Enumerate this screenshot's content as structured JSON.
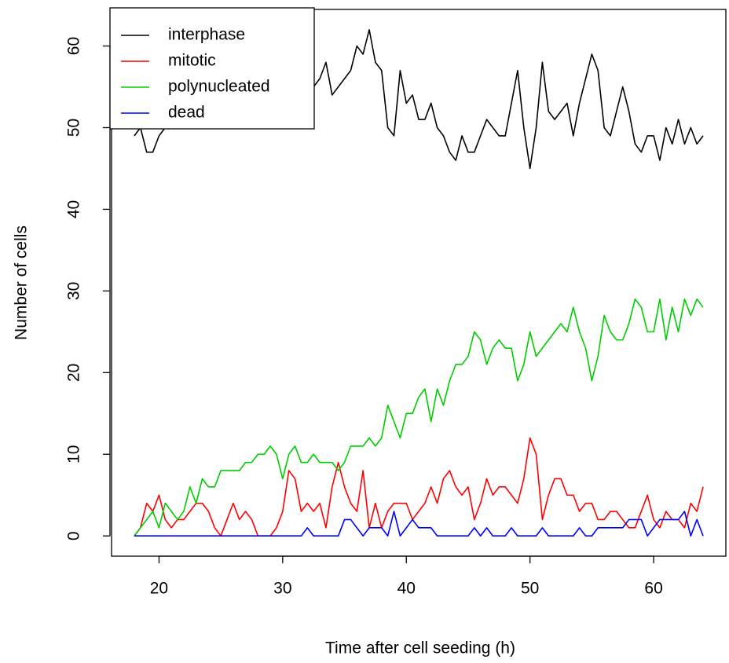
{
  "chart_data": {
    "type": "line",
    "xlabel": "Time after cell seeding (h)",
    "ylabel": "Number of cells",
    "x": [
      18,
      18.5,
      19,
      19.5,
      20,
      20.5,
      21,
      21.5,
      22,
      22.5,
      23,
      23.5,
      24,
      24.5,
      25,
      25.5,
      26,
      26.5,
      27,
      27.5,
      28,
      28.5,
      29,
      29.5,
      30,
      30.5,
      31,
      31.5,
      32,
      32.5,
      33,
      33.5,
      34,
      34.5,
      35,
      35.5,
      36,
      36.5,
      37,
      37.5,
      38,
      38.5,
      39,
      39.5,
      40,
      40.5,
      41,
      41.5,
      42,
      42.5,
      43,
      43.5,
      44,
      44.5,
      45,
      45.5,
      46,
      46.5,
      47,
      47.5,
      48,
      48.5,
      49,
      49.5,
      50,
      50.5,
      51,
      51.5,
      52,
      52.5,
      53,
      53.5,
      54,
      54.5,
      55,
      55.5,
      56,
      56.5,
      57,
      57.5,
      58,
      58.5,
      59,
      59.5,
      60,
      60.5,
      61,
      61.5,
      62,
      62.5,
      63,
      63.5,
      64
    ],
    "series": [
      {
        "name": "interphase",
        "color": "#000000",
        "values": [
          49,
          50,
          47,
          47,
          49,
          50,
          51,
          52,
          51,
          53,
          52,
          54,
          53,
          55,
          54,
          56,
          55,
          54,
          56,
          55,
          57,
          56,
          55,
          54,
          56,
          55,
          54,
          53,
          55,
          55,
          56,
          58,
          54,
          55,
          56,
          57,
          60,
          59,
          62,
          58,
          57,
          50,
          49,
          57,
          53,
          54,
          51,
          51,
          53,
          50,
          49,
          47,
          46,
          49,
          47,
          47,
          49,
          51,
          50,
          49,
          49,
          53,
          57,
          50,
          45,
          50,
          58,
          52,
          51,
          52,
          53,
          49,
          53,
          56,
          59,
          57,
          50,
          49,
          52,
          55,
          52,
          48,
          47,
          49,
          49,
          46,
          50,
          48,
          51,
          48,
          50,
          48,
          49
        ]
      },
      {
        "name": "mitotic",
        "color": "#ff0000",
        "values": [
          0,
          1,
          4,
          3,
          5,
          2,
          1,
          2,
          2,
          3,
          4,
          4,
          3,
          1,
          0,
          2,
          4,
          2,
          3,
          2,
          0,
          0,
          0,
          1,
          3,
          8,
          7,
          3,
          4,
          3,
          4,
          1,
          6,
          9,
          6,
          4,
          3,
          8,
          1,
          4,
          1,
          3,
          4,
          4,
          4,
          2,
          3,
          4,
          6,
          4,
          7,
          8,
          6,
          5,
          6,
          2,
          4,
          7,
          5,
          6,
          6,
          5,
          4,
          7,
          12,
          10,
          2,
          5,
          7,
          7,
          5,
          5,
          3,
          4,
          4,
          2,
          2,
          3,
          3,
          2,
          1,
          1,
          3,
          5,
          2,
          1,
          3,
          2,
          2,
          1,
          4,
          3,
          6
        ]
      },
      {
        "name": "polynucleated",
        "color": "#00cd00",
        "values": [
          0,
          1,
          2,
          3,
          1,
          4,
          3,
          2,
          3,
          6,
          4,
          7,
          6,
          6,
          8,
          8,
          8,
          8,
          9,
          9,
          10,
          10,
          11,
          10,
          7,
          10,
          11,
          9,
          9,
          10,
          9,
          9,
          9,
          8,
          9,
          11,
          11,
          11,
          12,
          11,
          12,
          16,
          14,
          12,
          15,
          15,
          17,
          18,
          14,
          18,
          16,
          19,
          21,
          21,
          22,
          25,
          24,
          21,
          23,
          24,
          23,
          23,
          19,
          21,
          25,
          22,
          23,
          24,
          25,
          26,
          25,
          28,
          25,
          23,
          19,
          22,
          27,
          25,
          24,
          24,
          26,
          29,
          28,
          25,
          25,
          29,
          24,
          28,
          25,
          29,
          27,
          29,
          28
        ]
      },
      {
        "name": "dead",
        "color": "#0000ff",
        "values": [
          0,
          0,
          0,
          0,
          0,
          0,
          0,
          0,
          0,
          0,
          0,
          0,
          0,
          0,
          0,
          0,
          0,
          0,
          0,
          0,
          0,
          0,
          0,
          0,
          0,
          0,
          0,
          0,
          1,
          0,
          0,
          0,
          0,
          0,
          2,
          2,
          1,
          0,
          1,
          1,
          1,
          0,
          3,
          0,
          1,
          2,
          1,
          1,
          1,
          0,
          0,
          0,
          0,
          0,
          0,
          1,
          0,
          1,
          0,
          0,
          0,
          1,
          0,
          0,
          0,
          0,
          1,
          0,
          0,
          0,
          0,
          0,
          1,
          0,
          0,
          1,
          1,
          1,
          1,
          1,
          2,
          2,
          2,
          0,
          1,
          2,
          2,
          2,
          2,
          3,
          0,
          2,
          0
        ]
      }
    ],
    "xlim": [
      16.16,
      65.84
    ],
    "xticks": [
      20,
      30,
      40,
      50,
      60
    ],
    "ylim": [
      -2.48,
      64.48
    ],
    "yticks": [
      0,
      10,
      20,
      30,
      40,
      50,
      60
    ],
    "legend": "top-left"
  }
}
